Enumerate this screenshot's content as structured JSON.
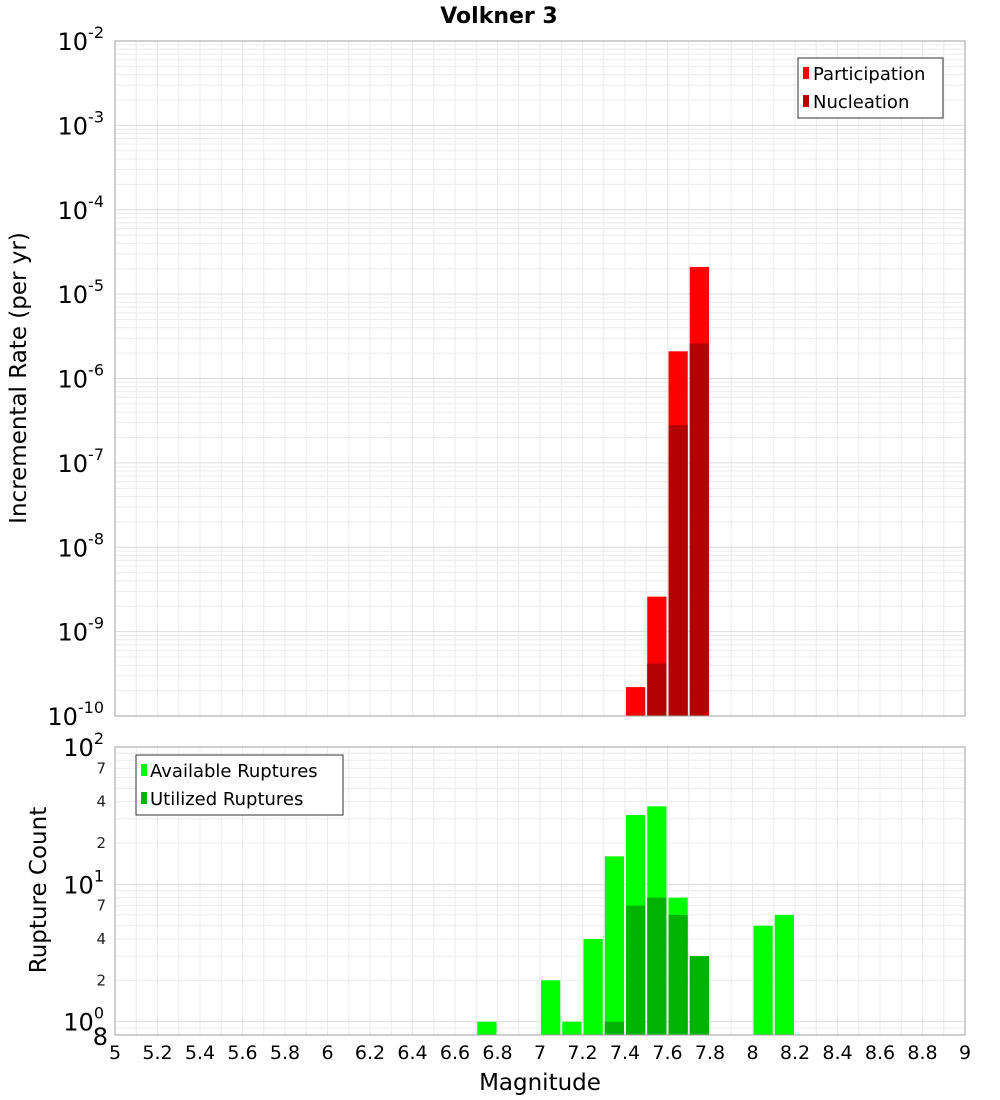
{
  "chart_data": [
    {
      "type": "bar",
      "title": "Volkner 3",
      "xlabel": "",
      "ylabel": "Incremental Rate (per yr)",
      "yscale": "log",
      "ylim": [
        1e-10,
        0.01
      ],
      "xlim": [
        5,
        9
      ],
      "y_ticks": [
        {
          "base": "10",
          "exp": "-10"
        },
        {
          "base": "10",
          "exp": "-9"
        },
        {
          "base": "10",
          "exp": "-8"
        },
        {
          "base": "10",
          "exp": "-7"
        },
        {
          "base": "10",
          "exp": "-6"
        },
        {
          "base": "10",
          "exp": "-5"
        },
        {
          "base": "10",
          "exp": "-4"
        },
        {
          "base": "10",
          "exp": "-3"
        },
        {
          "base": "10",
          "exp": "-2"
        }
      ],
      "grid": true,
      "legend_position": "top-right",
      "series": [
        {
          "name": "Participation",
          "color": "#ff0000",
          "points": [
            {
              "x": 7.45,
              "y": 2.2e-10
            },
            {
              "x": 7.55,
              "y": 2.6e-09
            },
            {
              "x": 7.65,
              "y": 2.1e-06
            },
            {
              "x": 7.75,
              "y": 2.1e-05
            }
          ]
        },
        {
          "name": "Nucleation",
          "color": "#b30000",
          "points": [
            {
              "x": 7.55,
              "y": 4.2e-10
            },
            {
              "x": 7.65,
              "y": 2.8e-07
            },
            {
              "x": 7.75,
              "y": 2.6e-06
            }
          ]
        }
      ]
    },
    {
      "type": "bar",
      "title": "",
      "xlabel": "Magnitude",
      "ylabel": "Rupture Count",
      "yscale": "log",
      "ylim": [
        0.8,
        100
      ],
      "xlim": [
        5,
        9
      ],
      "x_ticks": [
        "5",
        "5.2",
        "5.4",
        "5.6",
        "5.8",
        "6",
        "6.2",
        "6.4",
        "6.6",
        "6.8",
        "7",
        "7.2",
        "7.4",
        "7.6",
        "7.8",
        "8",
        "8.2",
        "8.4",
        "8.6",
        "8.8",
        "9"
      ],
      "y_ticks": [
        {
          "base": "10",
          "exp": "0"
        },
        {
          "base": "10",
          "exp": "1"
        },
        {
          "base": "10",
          "exp": "2"
        }
      ],
      "y_minor_labels": [
        {
          "value": 0.8,
          "label": "8"
        },
        {
          "value": 2,
          "label": "2"
        },
        {
          "value": 4,
          "label": "4"
        },
        {
          "value": 7,
          "label": "7"
        },
        {
          "value": 20,
          "label": "2"
        },
        {
          "value": 40,
          "label": "4"
        },
        {
          "value": 70,
          "label": "7"
        }
      ],
      "grid": true,
      "legend_position": "top-left",
      "series": [
        {
          "name": "Available Ruptures",
          "color": "#00ff00",
          "points": [
            {
              "x": 6.75,
              "y": 1
            },
            {
              "x": 7.05,
              "y": 2
            },
            {
              "x": 7.15,
              "y": 1
            },
            {
              "x": 7.25,
              "y": 4
            },
            {
              "x": 7.35,
              "y": 16
            },
            {
              "x": 7.45,
              "y": 32
            },
            {
              "x": 7.55,
              "y": 37
            },
            {
              "x": 7.65,
              "y": 8
            },
            {
              "x": 7.75,
              "y": 3
            },
            {
              "x": 8.05,
              "y": 5
            },
            {
              "x": 8.15,
              "y": 6
            }
          ]
        },
        {
          "name": "Utilized Ruptures",
          "color": "#00b300",
          "points": [
            {
              "x": 7.35,
              "y": 1
            },
            {
              "x": 7.45,
              "y": 7
            },
            {
              "x": 7.55,
              "y": 8
            },
            {
              "x": 7.65,
              "y": 6
            },
            {
              "x": 7.75,
              "y": 3
            }
          ]
        }
      ]
    }
  ]
}
